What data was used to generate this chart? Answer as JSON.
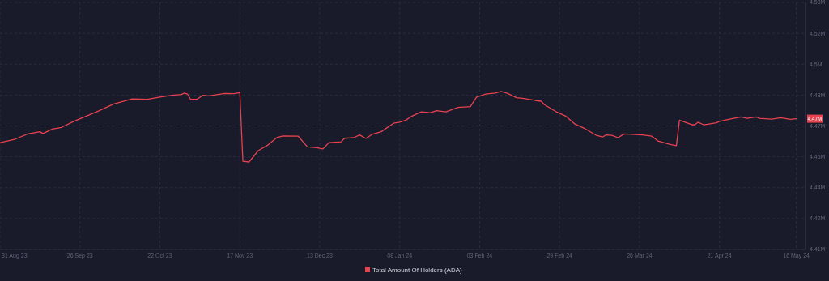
{
  "chart_data": {
    "type": "line",
    "x": [
      "2023-08-31",
      "2023-09-05",
      "2023-09-09",
      "2023-09-13",
      "2023-09-14",
      "2023-09-17",
      "2023-09-20",
      "2023-09-24",
      "2023-10-02",
      "2023-10-07",
      "2023-10-13",
      "2023-10-18",
      "2023-10-22",
      "2023-10-26",
      "2023-10-29",
      "2023-10-30",
      "2023-10-31",
      "2023-11-01",
      "2023-11-03",
      "2023-11-05",
      "2023-11-07",
      "2023-11-12",
      "2023-11-15",
      "2023-11-17",
      "2023-11-18",
      "2023-11-20",
      "2023-11-23",
      "2023-11-26",
      "2023-11-29",
      "2023-12-01",
      "2023-12-06",
      "2023-12-09",
      "2023-12-12",
      "2023-12-14",
      "2023-12-16",
      "2023-12-20",
      "2023-12-21",
      "2023-12-24",
      "2023-12-26",
      "2023-12-28",
      "2023-12-30",
      "2024-01-02",
      "2024-01-06",
      "2024-01-08",
      "2024-01-10",
      "2024-01-12",
      "2024-01-15",
      "2024-01-18",
      "2024-01-20",
      "2024-01-23",
      "2024-01-27",
      "2024-01-31",
      "2024-02-02",
      "2024-02-05",
      "2024-02-08",
      "2024-02-10",
      "2024-02-12",
      "2024-02-15",
      "2024-02-17",
      "2024-02-21",
      "2024-02-23",
      "2024-02-24",
      "2024-02-28",
      "2024-03-02",
      "2024-03-05",
      "2024-03-08",
      "2024-03-12",
      "2024-03-14",
      "2024-03-15",
      "2024-03-17",
      "2024-03-19",
      "2024-03-21",
      "2024-03-27",
      "2024-03-30",
      "2024-04-01",
      "2024-04-05",
      "2024-04-07",
      "2024-04-08",
      "2024-04-12",
      "2024-04-13",
      "2024-04-14",
      "2024-04-16",
      "2024-04-20",
      "2024-04-21",
      "2024-04-24",
      "2024-04-28",
      "2024-04-30",
      "2024-05-03",
      "2024-05-04",
      "2024-05-08",
      "2024-05-11",
      "2024-05-14",
      "2024-05-16"
    ],
    "series": [
      {
        "name": "Total Amount Of Holders (ADA)",
        "color": "#e8424f",
        "values": [
          4.4619,
          4.4636,
          4.4661,
          4.4672,
          4.4663,
          4.4685,
          4.4693,
          4.4722,
          4.4772,
          4.4807,
          4.4831,
          4.4829,
          4.484,
          4.4849,
          4.4853,
          4.486,
          4.4855,
          4.4829,
          4.4829,
          4.4849,
          4.4846,
          4.4858,
          4.4857,
          4.4862,
          4.4528,
          4.4525,
          4.458,
          4.4606,
          4.4643,
          4.4651,
          4.465,
          4.4598,
          4.4594,
          4.4588,
          4.4619,
          4.4623,
          4.464,
          4.4643,
          4.4656,
          4.4639,
          4.4659,
          4.4672,
          4.4713,
          4.4718,
          4.4728,
          4.4748,
          4.4768,
          4.4764,
          4.4774,
          4.4768,
          4.479,
          4.4794,
          4.484,
          4.4855,
          4.486,
          4.4868,
          4.4859,
          4.4837,
          4.4834,
          4.4824,
          4.482,
          4.4804,
          4.4768,
          4.4748,
          4.4709,
          4.4689,
          4.4654,
          4.4646,
          4.4656,
          4.4654,
          4.4643,
          4.4661,
          4.4656,
          4.465,
          4.4627,
          4.461,
          4.4604,
          4.4728,
          4.4706,
          4.4706,
          4.4718,
          4.4705,
          4.4715,
          4.4722,
          4.4732,
          4.4744,
          4.4737,
          4.4744,
          4.4737,
          4.4733,
          4.474,
          4.4732,
          4.4735
        ]
      }
    ],
    "xlim": [
      "2023-08-31",
      "2024-05-19"
    ],
    "xticks": [
      {
        "value": "2023-08-31",
        "label": "31 Aug 23"
      },
      {
        "value": "2023-09-26",
        "label": "26 Sep 23"
      },
      {
        "value": "2023-10-22",
        "label": "22 Oct 23"
      },
      {
        "value": "2023-11-17",
        "label": "17 Nov 23"
      },
      {
        "value": "2023-12-13",
        "label": "13 Dec 23"
      },
      {
        "value": "2024-01-08",
        "label": "08 Jan 24"
      },
      {
        "value": "2024-02-03",
        "label": "03 Feb 24"
      },
      {
        "value": "2024-02-29",
        "label": "29 Feb 24"
      },
      {
        "value": "2024-03-26",
        "label": "26 Mar 24"
      },
      {
        "value": "2024-04-21",
        "label": "21 Apr 24"
      },
      {
        "value": "2024-05-16",
        "label": "16 May 24"
      }
    ],
    "ylim": [
      4.41,
      4.53
    ],
    "yticks": [
      {
        "value": 4.41,
        "label": "4.41M"
      },
      {
        "value": 4.425,
        "label": "4.42M"
      },
      {
        "value": 4.44,
        "label": "4.44M"
      },
      {
        "value": 4.455,
        "label": "4.45M"
      },
      {
        "value": 4.47,
        "label": "4.47M"
      },
      {
        "value": 4.485,
        "label": "4.48M"
      },
      {
        "value": 4.5,
        "label": "4.5M"
      },
      {
        "value": 4.515,
        "label": "4.52M"
      },
      {
        "value": 4.53,
        "label": "4.53M"
      }
    ],
    "annotations": [
      {
        "text": "4.47M",
        "x": "2024-05-16",
        "y": 4.4735
      }
    ],
    "grid": true,
    "legend": "bottom"
  }
}
